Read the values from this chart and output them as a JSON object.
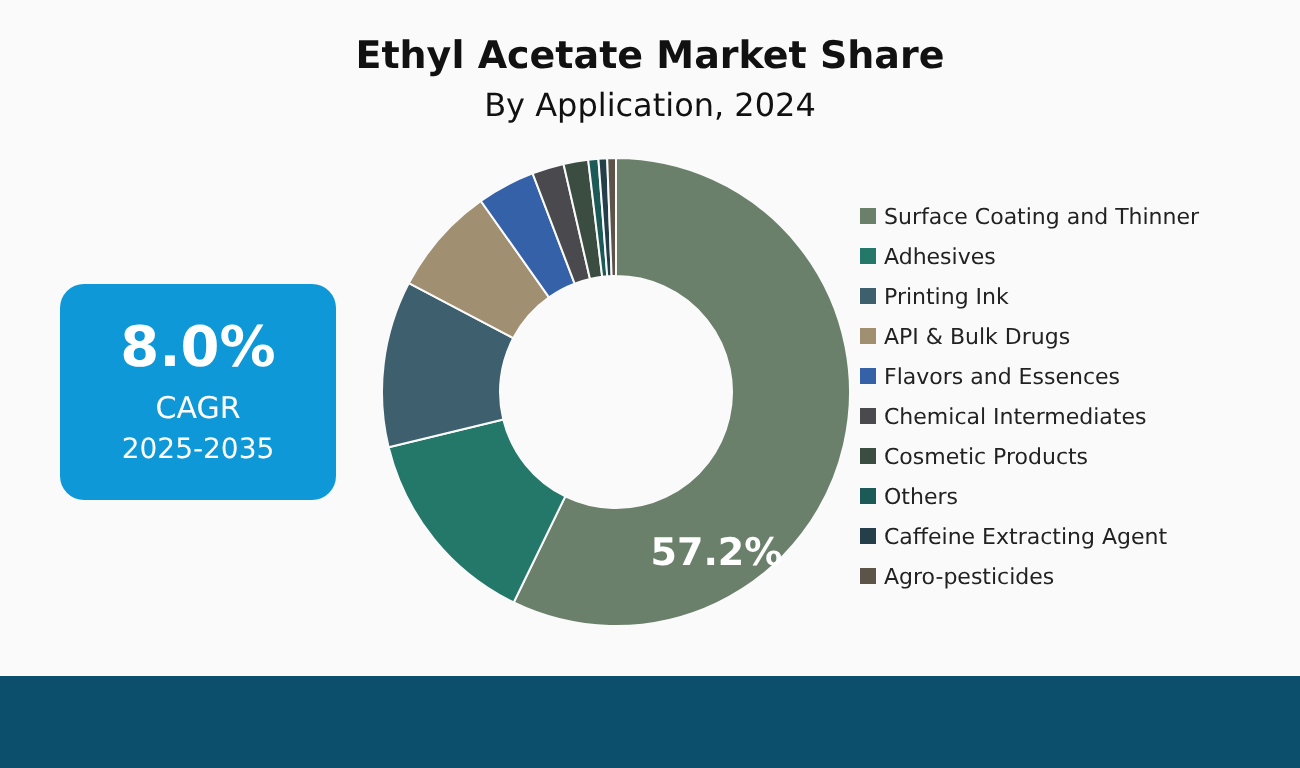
{
  "chart_data": {
    "type": "donut",
    "title": "Ethyl Acetate Market Share",
    "subtitle": "By Application, 2024",
    "categories": [
      "Surface Coating and Thinner",
      "Adhesives",
      "Printing Ink",
      "API & Bulk Drugs",
      "Flavors and Essences",
      "Chemical Intermediates",
      "Cosmetic Products",
      "Others",
      "Caffeine Extracting Agent",
      "Agro-pesticides"
    ],
    "values": [
      57.2,
      14,
      11.5,
      7.5,
      4,
      2.2,
      1.7,
      0.7,
      0.6,
      0.6
    ],
    "colors": [
      "#6b806b",
      "#23786a",
      "#3d5f6e",
      "#a08f70",
      "#3461a8",
      "#4a4a4e",
      "#3b4d40",
      "#1c5a58",
      "#243e4a",
      "#5c5448"
    ],
    "value_labels": [
      "57.2%",
      null,
      null,
      null,
      null,
      null,
      null,
      null,
      null,
      null
    ],
    "legend": "right",
    "annotations": [
      "8.0%",
      "CAGR",
      "2025-2035"
    ]
  }
}
